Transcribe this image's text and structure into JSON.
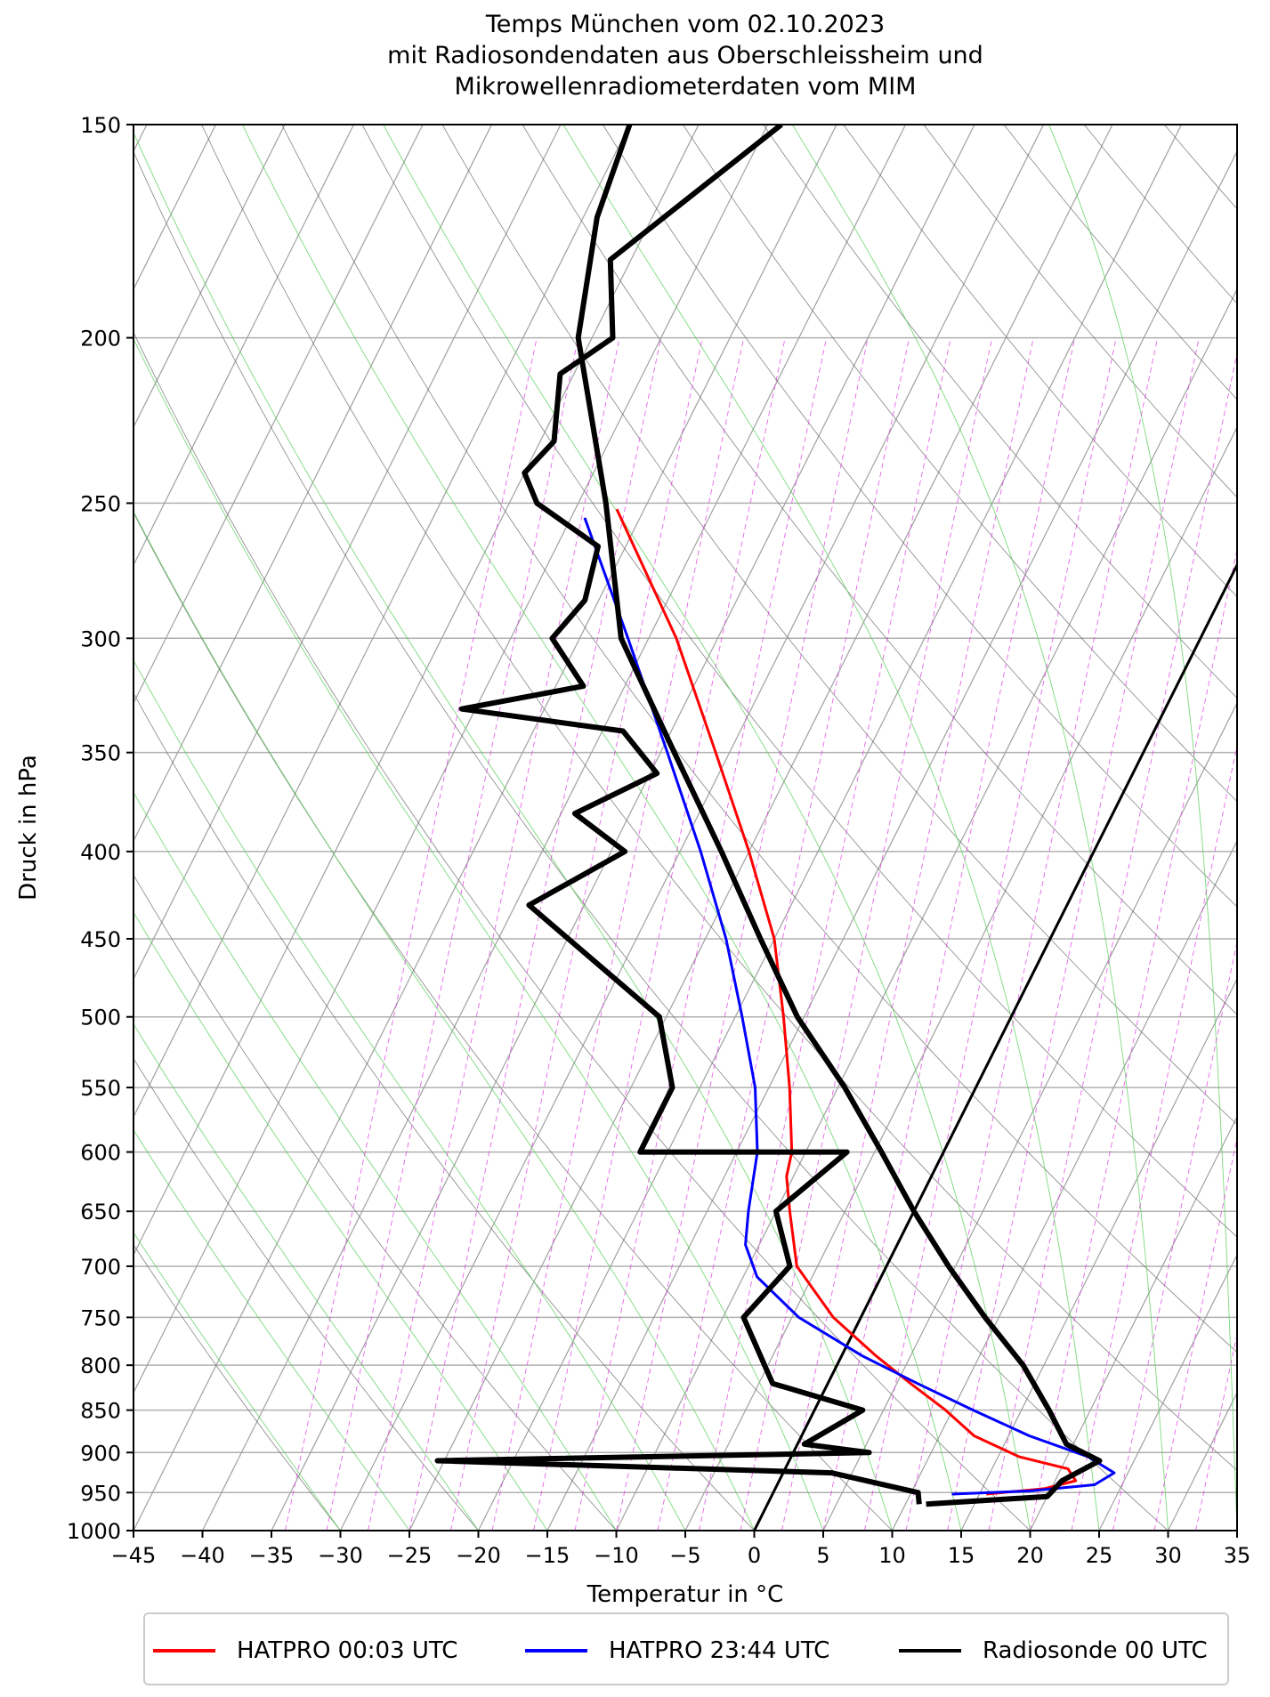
{
  "chart_data": {
    "type": "line",
    "title_lines": [
      "Temps München vom 02.10.2023",
      "mit Radiosondendaten aus Oberschleissheim und",
      "Mikrowellenradiometerdaten vom MIM"
    ],
    "xlabel": "Temperatur in °C",
    "ylabel": "Druck in hPa",
    "xlim": [
      -45,
      35
    ],
    "ylim": [
      1000,
      150
    ],
    "y_scale": "log",
    "x_ticks": [
      "−45",
      "−40",
      "−35",
      "−30",
      "−25",
      "−20",
      "−15",
      "−10",
      "−5",
      "0",
      "5",
      "10",
      "15",
      "20",
      "25",
      "30",
      "35"
    ],
    "y_ticks": [
      150,
      200,
      250,
      300,
      350,
      400,
      450,
      500,
      550,
      600,
      650,
      700,
      750,
      800,
      850,
      900,
      950,
      1000
    ],
    "skew_note": "skew-T log-p diagram with dry adiabats (grey), moist adiabats (green) and mixing ratio lines (magenta dashed)",
    "legend_position": "bottom",
    "series": [
      {
        "name": "HATPRO 00:03 UTC",
        "color": "#ff0000",
        "points": [
          {
            "p": 952,
            "t": 15.5
          },
          {
            "p": 945,
            "t": 19.5
          },
          {
            "p": 935,
            "t": 21.5
          },
          {
            "p": 920,
            "t": 20.5
          },
          {
            "p": 905,
            "t": 16.5
          },
          {
            "p": 880,
            "t": 12.5
          },
          {
            "p": 850,
            "t": 9.5
          },
          {
            "p": 820,
            "t": 6.0
          },
          {
            "p": 790,
            "t": 2.5
          },
          {
            "p": 750,
            "t": -2.0
          },
          {
            "p": 700,
            "t": -6.5
          },
          {
            "p": 650,
            "t": -9.0
          },
          {
            "p": 620,
            "t": -10.5
          },
          {
            "p": 600,
            "t": -11.0
          },
          {
            "p": 550,
            "t": -13.5
          },
          {
            "p": 500,
            "t": -16.5
          },
          {
            "p": 450,
            "t": -20.0
          },
          {
            "p": 400,
            "t": -25.0
          },
          {
            "p": 350,
            "t": -31.0
          },
          {
            "p": 300,
            "t": -38.0
          },
          {
            "p": 252,
            "t": -47.0
          }
        ]
      },
      {
        "name": "HATPRO 23:44 UTC",
        "color": "#0000ff",
        "points": [
          {
            "p": 952,
            "t": 13.0
          },
          {
            "p": 948,
            "t": 18.5
          },
          {
            "p": 940,
            "t": 23.0
          },
          {
            "p": 925,
            "t": 24.0
          },
          {
            "p": 905,
            "t": 21.5
          },
          {
            "p": 880,
            "t": 16.5
          },
          {
            "p": 850,
            "t": 11.5
          },
          {
            "p": 820,
            "t": 6.5
          },
          {
            "p": 790,
            "t": 1.5
          },
          {
            "p": 750,
            "t": -4.5
          },
          {
            "p": 710,
            "t": -9.0
          },
          {
            "p": 680,
            "t": -11.0
          },
          {
            "p": 650,
            "t": -12.0
          },
          {
            "p": 600,
            "t": -13.5
          },
          {
            "p": 550,
            "t": -16.0
          },
          {
            "p": 500,
            "t": -19.5
          },
          {
            "p": 450,
            "t": -23.5
          },
          {
            "p": 400,
            "t": -28.5
          },
          {
            "p": 350,
            "t": -34.5
          },
          {
            "p": 300,
            "t": -41.5
          },
          {
            "p": 255,
            "t": -49.0
          }
        ]
      },
      {
        "name": "Radiosonde 00 UTC",
        "color": "#000000",
        "points": [
          {
            "p": 965,
            "t": 11.5
          },
          {
            "p": 955,
            "t": 20.0
          },
          {
            "p": 935,
            "t": 20.5
          },
          {
            "p": 910,
            "t": 22.5
          },
          {
            "p": 890,
            "t": 19.5
          },
          {
            "p": 850,
            "t": 17.0
          },
          {
            "p": 800,
            "t": 13.5
          },
          {
            "p": 750,
            "t": 9.0
          },
          {
            "p": 700,
            "t": 4.5
          },
          {
            "p": 650,
            "t": 0.0
          },
          {
            "p": 600,
            "t": -4.5
          },
          {
            "p": 550,
            "t": -9.5
          },
          {
            "p": 500,
            "t": -15.5
          },
          {
            "p": 450,
            "t": -21.0
          },
          {
            "p": 400,
            "t": -27.0
          },
          {
            "p": 350,
            "t": -34.0
          },
          {
            "p": 300,
            "t": -42.0
          },
          {
            "p": 250,
            "t": -48.0
          },
          {
            "p": 200,
            "t": -56.0
          },
          {
            "p": 170,
            "t": -59.0
          },
          {
            "p": 150,
            "t": -60.0
          }
        ]
      },
      {
        "name": "",
        "color": "#000000",
        "points": [
          {
            "p": 965,
            "t": 11.0
          },
          {
            "p": 950,
            "t": 10.5
          },
          {
            "p": 925,
            "t": 3.5
          },
          {
            "p": 910,
            "t": -25.5
          },
          {
            "p": 900,
            "t": 5.5
          },
          {
            "p": 890,
            "t": 0.5
          },
          {
            "p": 850,
            "t": 3.5
          },
          {
            "p": 820,
            "t": -4.0
          },
          {
            "p": 750,
            "t": -8.5
          },
          {
            "p": 700,
            "t": -7.0
          },
          {
            "p": 650,
            "t": -10.0
          },
          {
            "p": 600,
            "t": -7.0
          },
          {
            "p": 600,
            "t": -22.0
          },
          {
            "p": 550,
            "t": -22.0
          },
          {
            "p": 500,
            "t": -25.5
          },
          {
            "p": 430,
            "t": -39.0
          },
          {
            "p": 400,
            "t": -34.0
          },
          {
            "p": 380,
            "t": -39.0
          },
          {
            "p": 360,
            "t": -34.5
          },
          {
            "p": 340,
            "t": -38.5
          },
          {
            "p": 330,
            "t": -51.0
          },
          {
            "p": 320,
            "t": -43.0
          },
          {
            "p": 300,
            "t": -47.0
          },
          {
            "p": 285,
            "t": -46.0
          },
          {
            "p": 265,
            "t": -47.0
          },
          {
            "p": 250,
            "t": -53.0
          },
          {
            "p": 240,
            "t": -55.0
          },
          {
            "p": 230,
            "t": -54.0
          },
          {
            "p": 210,
            "t": -56.0
          },
          {
            "p": 200,
            "t": -53.5
          },
          {
            "p": 180,
            "t": -56.5
          },
          {
            "p": 150,
            "t": -49.0
          }
        ]
      }
    ],
    "reference_line": {
      "p": [
        1000,
        250
      ],
      "t": [
        0,
        0
      ]
    }
  }
}
